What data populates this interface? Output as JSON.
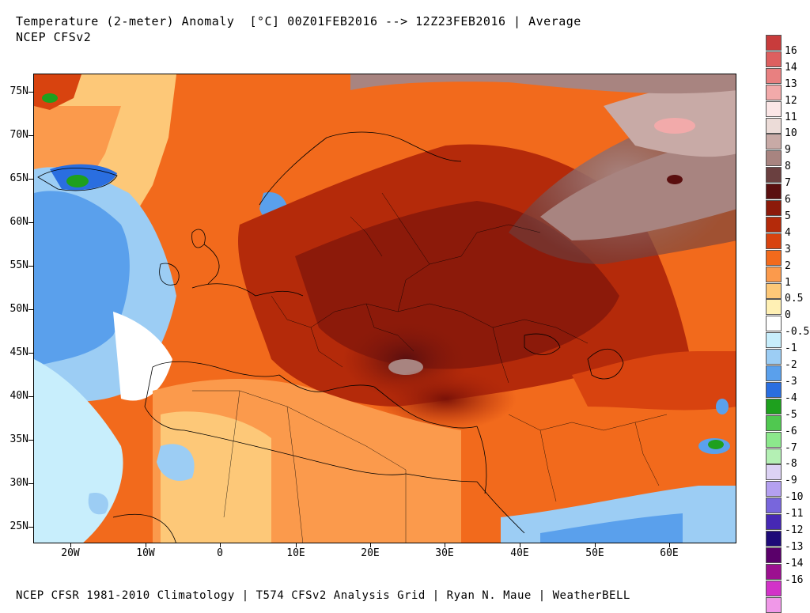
{
  "header": {
    "title": "Temperature (2-meter) Anomaly  [°C] 00Z01FEB2016 --> 12Z23FEB2016 | Average",
    "subtitle": "NCEP CFSv2"
  },
  "footer": {
    "credit": "NCEP CFSR 1981-2010 Climatology | T574 CFSv2 Analysis Grid | Ryan N. Maue | WeatherBELL"
  },
  "map": {
    "lat_labels": [
      "75N",
      "70N",
      "65N",
      "60N",
      "55N",
      "50N",
      "45N",
      "40N",
      "35N",
      "30N",
      "25N"
    ],
    "lon_labels": [
      "20W",
      "10W",
      "0",
      "10E",
      "20E",
      "30E",
      "40E",
      "50E",
      "60E"
    ]
  },
  "colorbar": {
    "labels": [
      "16",
      "14",
      "13",
      "12",
      "11",
      "10",
      "9",
      "8",
      "7",
      "6",
      "5",
      "4",
      "3",
      "2",
      "1",
      "0.5",
      "0",
      "-0.5",
      "-1",
      "-2",
      "-3",
      "-4",
      "-5",
      "-6",
      "-7",
      "-8",
      "-9",
      "-10",
      "-11",
      "-12",
      "-13",
      "-14",
      "-16"
    ],
    "colors": [
      "#c83c3c",
      "#dd5f5f",
      "#e88080",
      "#f2aaaa",
      "#fbe6e6",
      "#ecdcd8",
      "#c8aaa6",
      "#a88480",
      "#6a4040",
      "#5a0f0f",
      "#8c1a0a",
      "#b42a0a",
      "#d8430f",
      "#f26a1c",
      "#fb9a4c",
      "#fdc878",
      "#fff0b4",
      "#ffffff",
      "#c8eefc",
      "#9ccdf4",
      "#5aa0ec",
      "#2a6ee0",
      "#1ea01e",
      "#50c850",
      "#8ce88c",
      "#b4f0b4",
      "#dcd2f4",
      "#b4a0f0",
      "#7866dc",
      "#4628b4",
      "#1e0a78",
      "#5a006a",
      "#9c1090",
      "#d232c8",
      "#f098e8"
    ]
  }
}
